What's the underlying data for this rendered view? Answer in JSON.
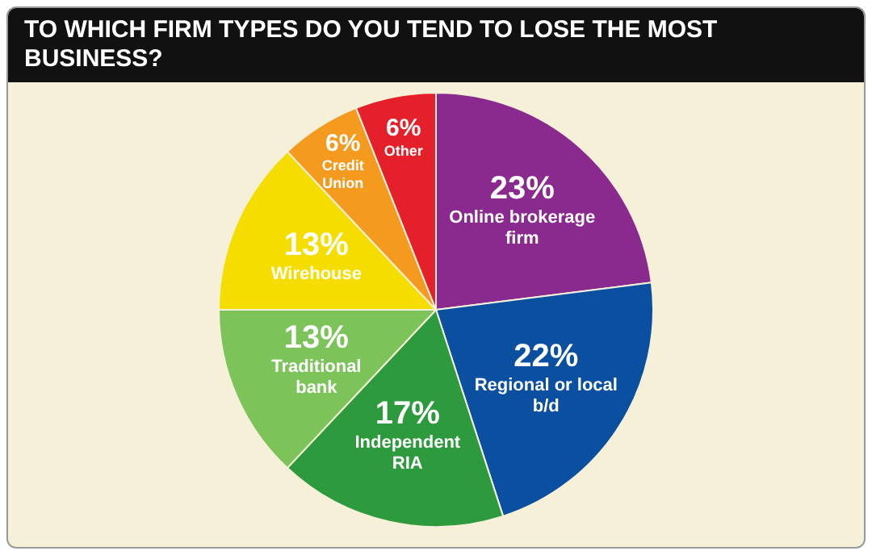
{
  "chart_data": {
    "type": "pie",
    "title": "TO WHICH FIRM TYPES DO YOU TEND TO LOSE THE MOST BUSINESS?",
    "categories": [
      "Online brokerage firm",
      "Regional or local b/d",
      "Independent RIA",
      "Traditional bank",
      "Wirehouse",
      "Credit Union",
      "Other"
    ],
    "values": [
      23,
      22,
      17,
      13,
      13,
      6,
      6
    ],
    "value_labels": [
      "23%",
      "22%",
      "17%",
      "13%",
      "13%",
      "6%",
      "6%"
    ],
    "colors": [
      "#8b2a8e",
      "#0a4fa0",
      "#2e9a3e",
      "#7cc35a",
      "#f5dd00",
      "#f39a1f",
      "#e4202a"
    ],
    "legend": false
  }
}
